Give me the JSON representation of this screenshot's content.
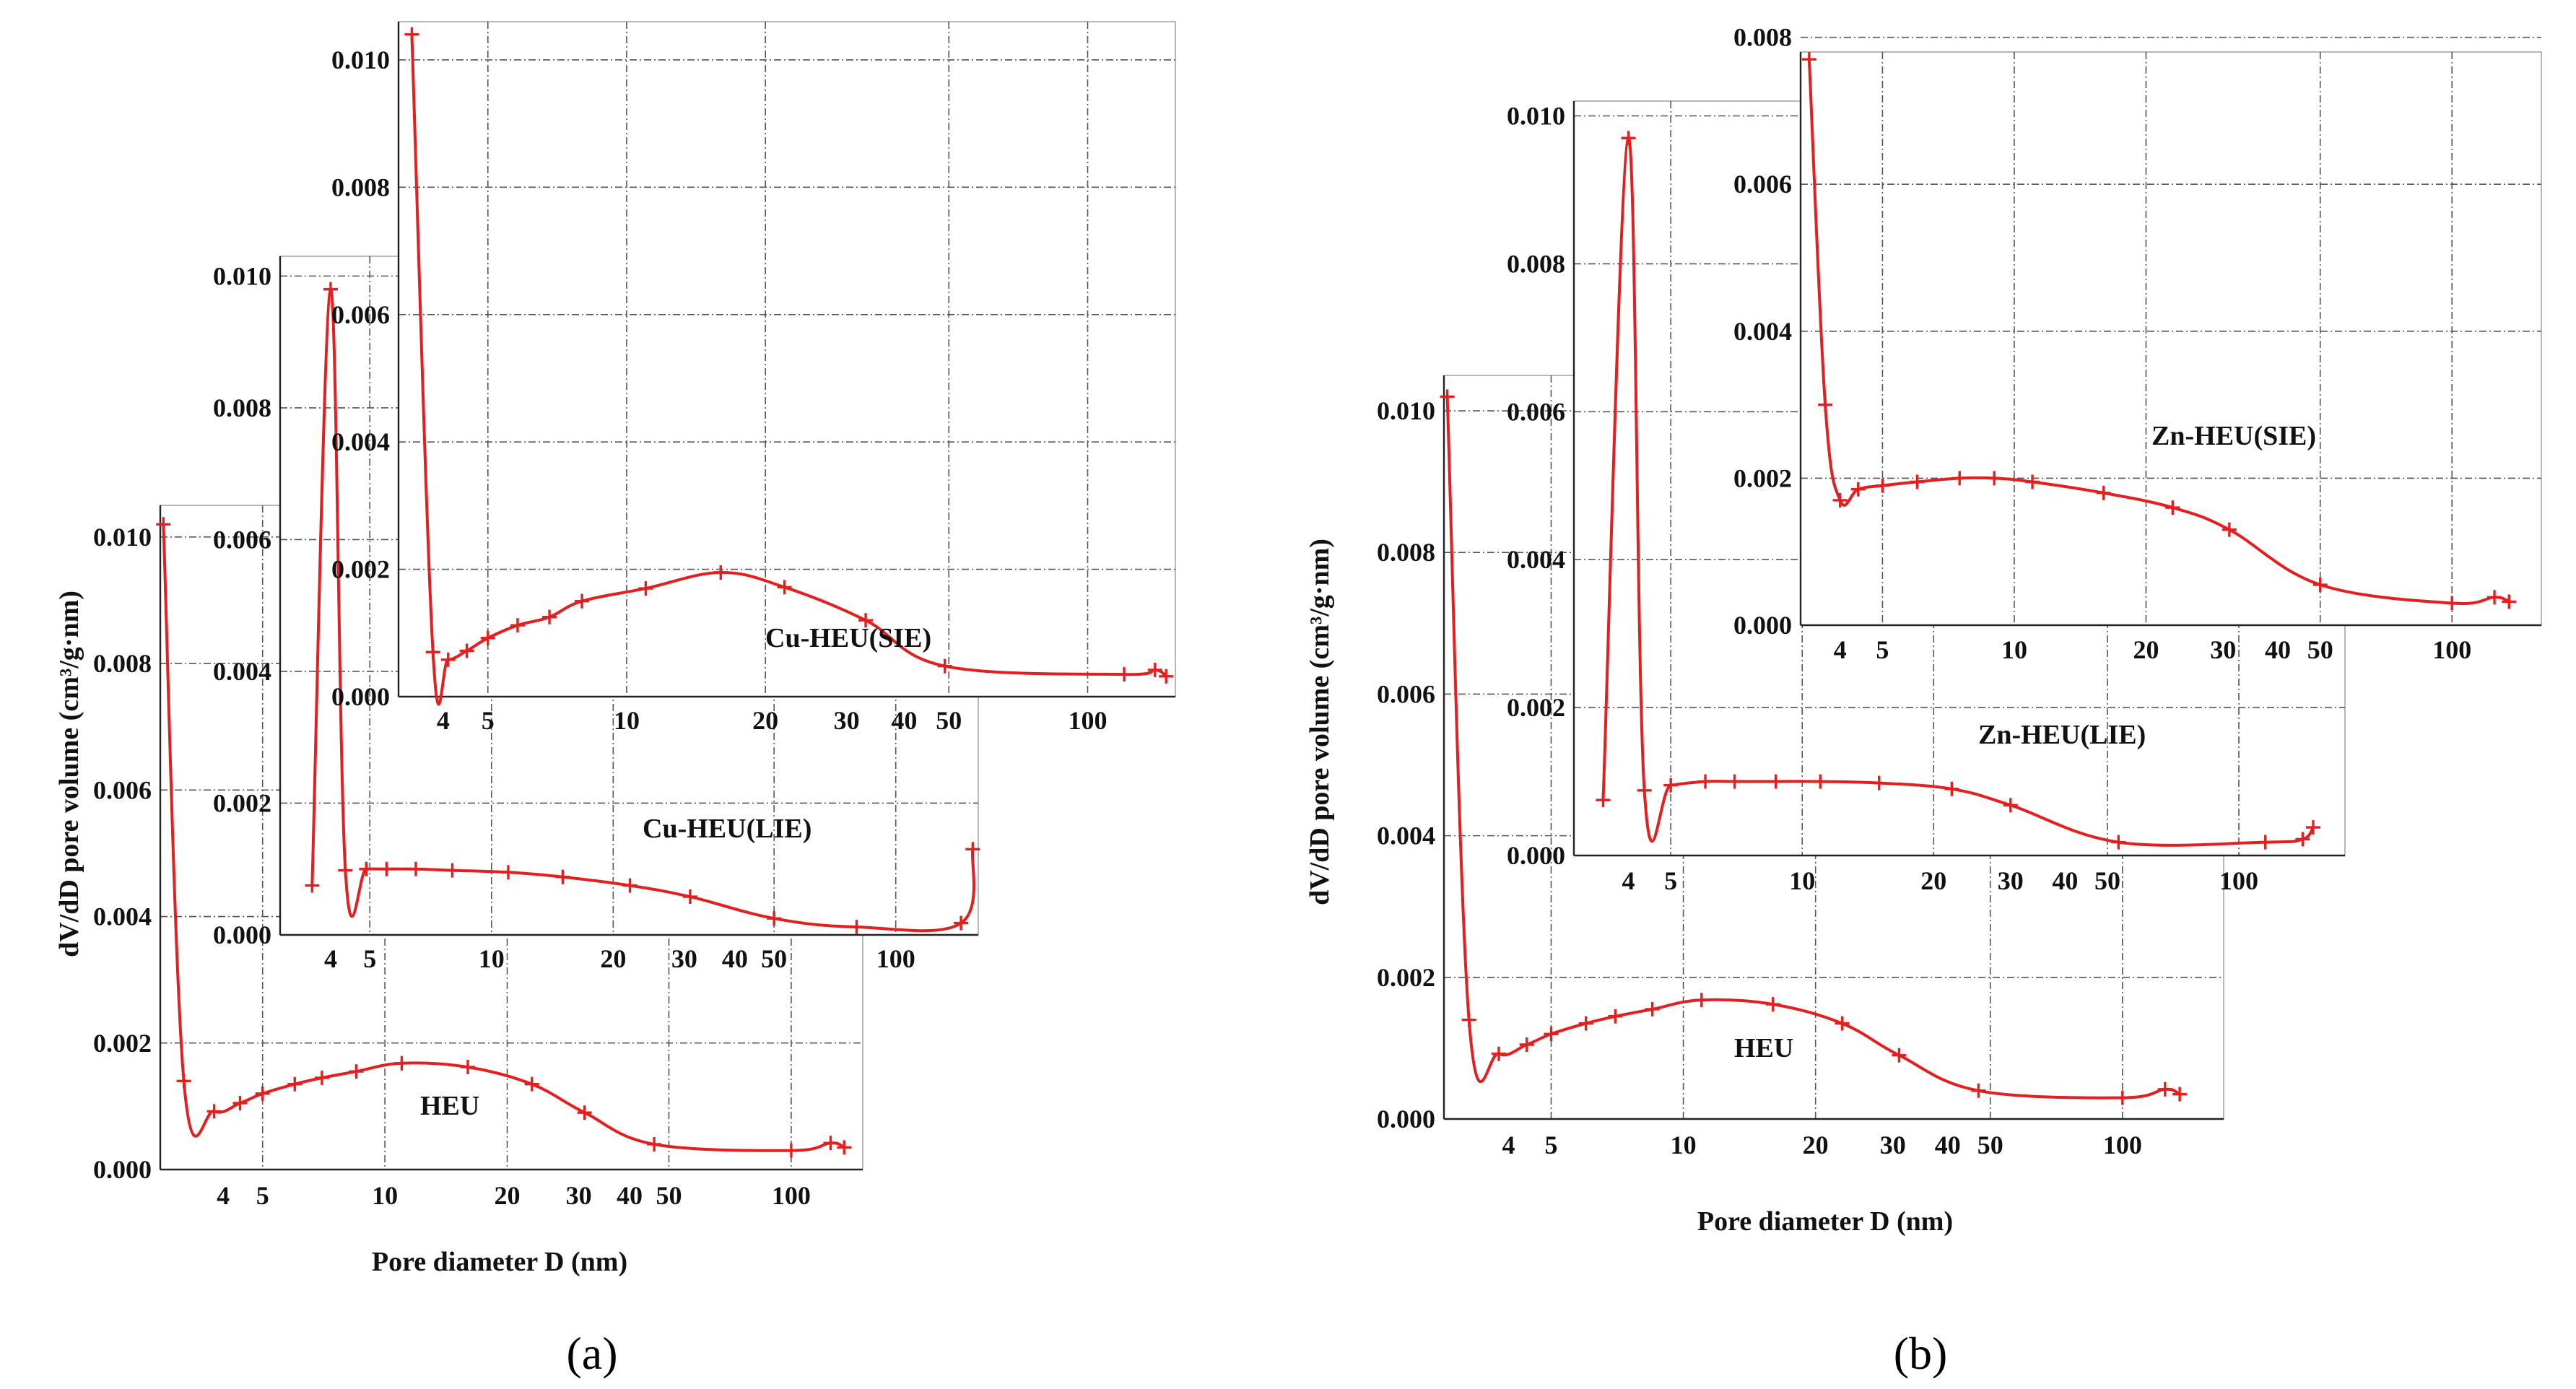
{
  "figure": {
    "ylabel": "dV/dD pore volume (cm³/g·nm)",
    "xlabel": "Pore diameter D (nm)",
    "panels": [
      "(a)",
      "(b)"
    ]
  },
  "colors": {
    "series": "#e41f1f",
    "grid": "#555555",
    "axis": "#222222"
  },
  "chart_data": [
    {
      "type": "line",
      "panel": "a",
      "name": "HEU",
      "label": "HEU",
      "xscale": "log",
      "xlim": [
        2.8,
        150
      ],
      "ylim": [
        0,
        0.0105
      ],
      "xticks": [
        4,
        5,
        10,
        20,
        30,
        40,
        50,
        100
      ],
      "yticks": [
        0,
        0.002,
        0.004,
        0.006,
        0.008,
        0.01
      ],
      "ytick_labels": [
        "0.000",
        "0.002",
        "0.004",
        "0.006",
        "0.008",
        "0.010"
      ],
      "x": [
        2.85,
        3.2,
        3.8,
        4.4,
        5.0,
        6.0,
        7.0,
        8.5,
        11.0,
        16.0,
        23.0,
        31.0,
        46.0,
        100.0,
        125.0,
        135.0
      ],
      "y": [
        0.0102,
        0.0014,
        0.00092,
        0.00105,
        0.0012,
        0.00135,
        0.00145,
        0.00155,
        0.00168,
        0.00162,
        0.00135,
        0.0009,
        0.0004,
        0.0003,
        0.00042,
        0.00035
      ]
    },
    {
      "type": "line",
      "panel": "a",
      "name": "Cu-HEU(LIE)",
      "label": "Cu-HEU(LIE)",
      "xscale": "log",
      "xlim": [
        3.0,
        160
      ],
      "ylim": [
        0,
        0.0103
      ],
      "xticks": [
        4,
        5,
        10,
        20,
        30,
        40,
        50,
        100
      ],
      "yticks": [
        0,
        0.002,
        0.004,
        0.006,
        0.008,
        0.01
      ],
      "ytick_labels": [
        "0.000",
        "0.002",
        "0.004",
        "0.006",
        "0.008",
        "0.010"
      ],
      "x": [
        3.6,
        4.0,
        4.35,
        4.9,
        5.5,
        6.5,
        8.0,
        11.0,
        15.0,
        22.0,
        31.0,
        50.0,
        80.0,
        145.0,
        155.0
      ],
      "y": [
        0.00075,
        0.0098,
        0.00098,
        0.001,
        0.001,
        0.001,
        0.00098,
        0.00095,
        0.00088,
        0.00075,
        0.00058,
        0.00025,
        0.00012,
        0.00018,
        0.0013
      ]
    },
    {
      "type": "line",
      "panel": "a",
      "name": "Cu-HEU(SIE)",
      "label": "Cu-HEU(SIE)",
      "xscale": "log",
      "xlim": [
        3.2,
        155
      ],
      "ylim": [
        0,
        0.0106
      ],
      "xticks": [
        4,
        5,
        10,
        20,
        30,
        40,
        50,
        100
      ],
      "yticks": [
        0,
        0.002,
        0.004,
        0.006,
        0.008,
        0.01
      ],
      "ytick_labels": [
        "0.000",
        "0.002",
        "0.004",
        "0.006",
        "0.008",
        "0.010"
      ],
      "x": [
        3.42,
        3.8,
        4.1,
        4.5,
        5.0,
        5.8,
        6.8,
        8.0,
        11.0,
        16.0,
        22.0,
        33.0,
        49.0,
        120.0,
        140.0,
        148.0
      ],
      "y": [
        0.0104,
        0.0007,
        0.00058,
        0.00072,
        0.00092,
        0.00112,
        0.00125,
        0.0015,
        0.0017,
        0.00195,
        0.00172,
        0.0012,
        0.00048,
        0.00035,
        0.00042,
        0.00032
      ]
    },
    {
      "type": "line",
      "panel": "b",
      "name": "HEU",
      "label": "HEU",
      "xscale": "log",
      "xlim": [
        2.85,
        170
      ],
      "ylim": [
        0,
        0.0105
      ],
      "xticks": [
        4,
        5,
        10,
        20,
        30,
        40,
        50,
        100
      ],
      "yticks": [
        0,
        0.002,
        0.004,
        0.006,
        0.008,
        0.01
      ],
      "ytick_labels": [
        "0.000",
        "0.002",
        "0.004",
        "0.006",
        "0.008",
        "0.010"
      ],
      "x": [
        2.9,
        3.25,
        3.8,
        4.4,
        5.0,
        6.0,
        7.0,
        8.5,
        11.0,
        16.0,
        23.0,
        31.0,
        47.0,
        100.0,
        125.0,
        135.0
      ],
      "y": [
        0.0102,
        0.0014,
        0.00092,
        0.00105,
        0.0012,
        0.00135,
        0.00145,
        0.00155,
        0.00168,
        0.00162,
        0.00135,
        0.0009,
        0.0004,
        0.0003,
        0.00042,
        0.00035
      ]
    },
    {
      "type": "line",
      "panel": "b",
      "name": "Zn-HEU(LIE)",
      "label": "Zn-HEU(LIE)",
      "xscale": "log",
      "xlim": [
        3.0,
        175
      ],
      "ylim": [
        0,
        0.0102
      ],
      "xticks": [
        4,
        5,
        10,
        20,
        30,
        40,
        50,
        100
      ],
      "yticks": [
        0,
        0.002,
        0.004,
        0.006,
        0.008,
        0.01
      ],
      "ytick_labels": [
        "0.000",
        "0.002",
        "0.004",
        "0.006",
        "0.008",
        "0.010"
      ],
      "x": [
        3.5,
        4.0,
        4.35,
        5.0,
        6.0,
        7.0,
        8.7,
        11.0,
        15.0,
        22.0,
        30.0,
        53.0,
        115.0,
        140.0,
        148.0
      ],
      "y": [
        0.00075,
        0.0097,
        0.00088,
        0.00095,
        0.001,
        0.001,
        0.001,
        0.001,
        0.00098,
        0.0009,
        0.00068,
        0.00018,
        0.00018,
        0.00022,
        0.00038
      ]
    },
    {
      "type": "line",
      "panel": "b",
      "name": "Zn-HEU(SIE)",
      "label": "Zn-HEU(SIE)",
      "xscale": "log",
      "xlim": [
        3.25,
        160
      ],
      "ylim": [
        0,
        0.0078
      ],
      "xticks": [
        4,
        5,
        10,
        20,
        30,
        40,
        50,
        100
      ],
      "yticks": [
        0,
        0.002,
        0.004,
        0.006,
        0.008
      ],
      "ytick_labels": [
        "0.000",
        "0.002",
        "0.004",
        "0.006",
        "0.008"
      ],
      "x": [
        3.4,
        3.7,
        4.0,
        4.4,
        5.0,
        6.0,
        7.5,
        9.0,
        11.0,
        16.0,
        23.0,
        31.0,
        50.0,
        100.0,
        125.0,
        135.0
      ],
      "y": [
        0.0077,
        0.003,
        0.0017,
        0.00185,
        0.0019,
        0.00195,
        0.002,
        0.002,
        0.00195,
        0.0018,
        0.0016,
        0.0013,
        0.00055,
        0.0003,
        0.00038,
        0.00032
      ]
    }
  ]
}
